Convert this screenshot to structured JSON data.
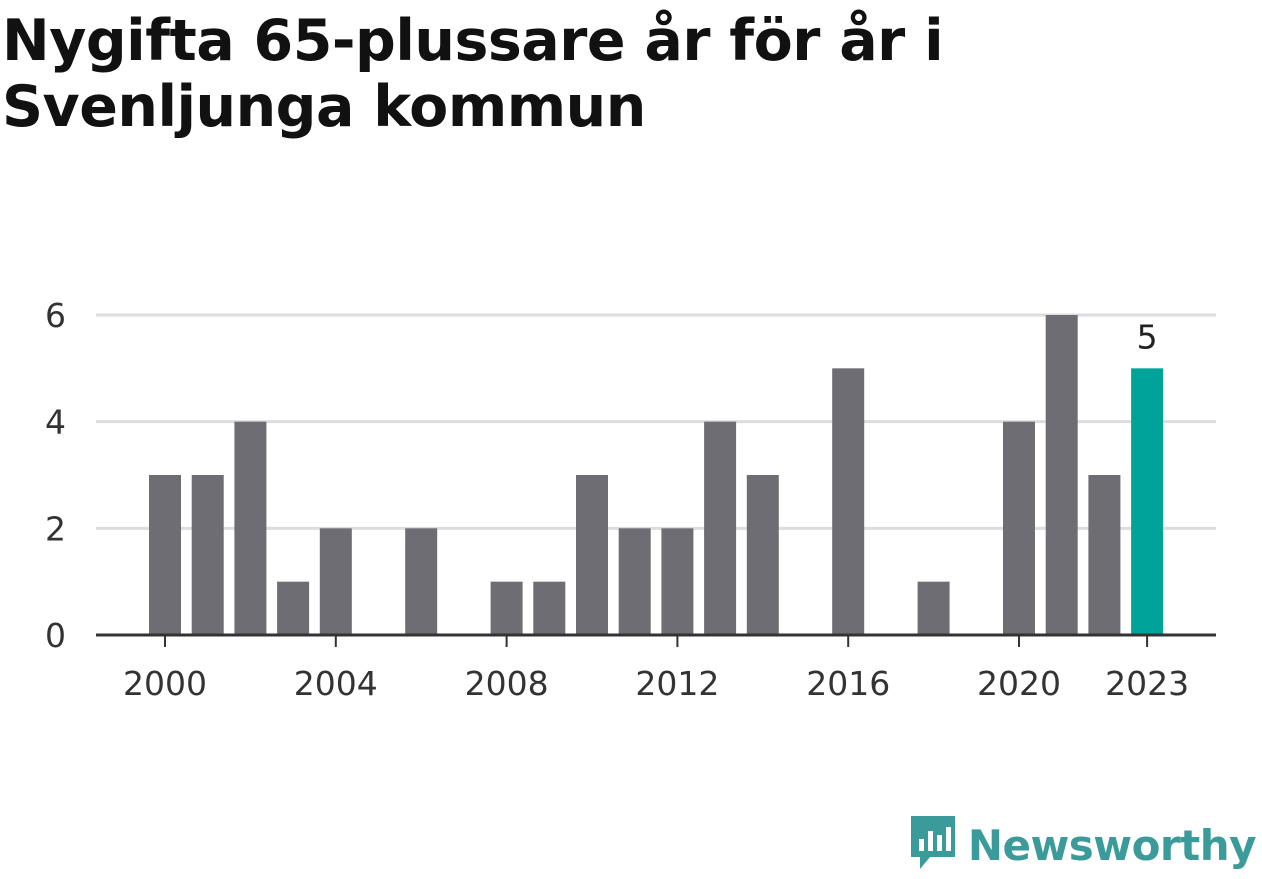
{
  "title": "Nygifta 65-plussare år för år i Svenljunga kommun",
  "brand": {
    "name": "Newsworthy",
    "icon": "newsworthy-logo-icon",
    "color": "#3a9b9a"
  },
  "colors": {
    "bar": "#6e6d73",
    "highlight": "#00a398",
    "grid": "#dddddd",
    "axis": "#333333"
  },
  "chart_data": {
    "type": "bar",
    "title": "Nygifta 65-plussare år för år i Svenljunga kommun",
    "xlabel": "",
    "ylabel": "",
    "categories": [
      2000,
      2001,
      2002,
      2003,
      2004,
      2005,
      2006,
      2007,
      2008,
      2009,
      2010,
      2011,
      2012,
      2013,
      2014,
      2015,
      2016,
      2017,
      2018,
      2019,
      2020,
      2021,
      2022,
      2023
    ],
    "values": [
      3,
      3,
      4,
      1,
      2,
      0,
      2,
      0,
      1,
      1,
      3,
      2,
      2,
      4,
      3,
      0,
      5,
      0,
      1,
      0,
      4,
      6,
      3,
      5
    ],
    "ylim": [
      0,
      6
    ],
    "yticks": [
      0,
      2,
      4,
      6
    ],
    "xticks": [
      2000,
      2004,
      2008,
      2012,
      2016,
      2020,
      2023
    ],
    "highlight": {
      "category": 2023,
      "label": "5"
    },
    "grid": true,
    "legend": "none"
  }
}
